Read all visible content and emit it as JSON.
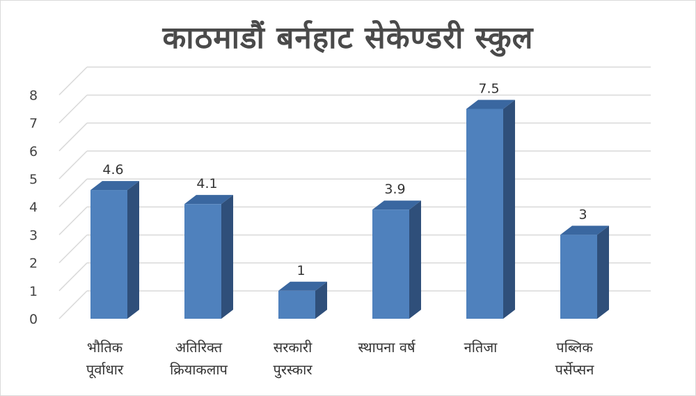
{
  "chart_data": {
    "type": "bar",
    "title": "काठमाडौं बर्नहाट सेकेण्डरी स्कुल",
    "categories": [
      [
        "भौतिक",
        "पूर्वाधार"
      ],
      [
        "अतिरिक्त",
        "क्रियाकलाप"
      ],
      [
        "सरकारी",
        "पुरस्कार"
      ],
      [
        "स्थापना वर्ष"
      ],
      [
        "नतिजा"
      ],
      [
        "पब्लिक",
        "पर्सेप्सन"
      ]
    ],
    "values": [
      4.6,
      4.1,
      1,
      3.9,
      7.5,
      3
    ],
    "value_labels": [
      "4.6",
      "4.1",
      "1",
      "3.9",
      "7.5",
      "3"
    ],
    "y_ticks": [
      "0",
      "1",
      "2",
      "3",
      "4",
      "5",
      "6",
      "7",
      "8"
    ],
    "ylim": [
      0,
      8
    ],
    "grid": true,
    "colors": {
      "bar_front": "#4f81bd",
      "bar_side": "#2f4f7a",
      "bar_top": "#3a67a0",
      "grid": "#d9d9d9"
    }
  }
}
